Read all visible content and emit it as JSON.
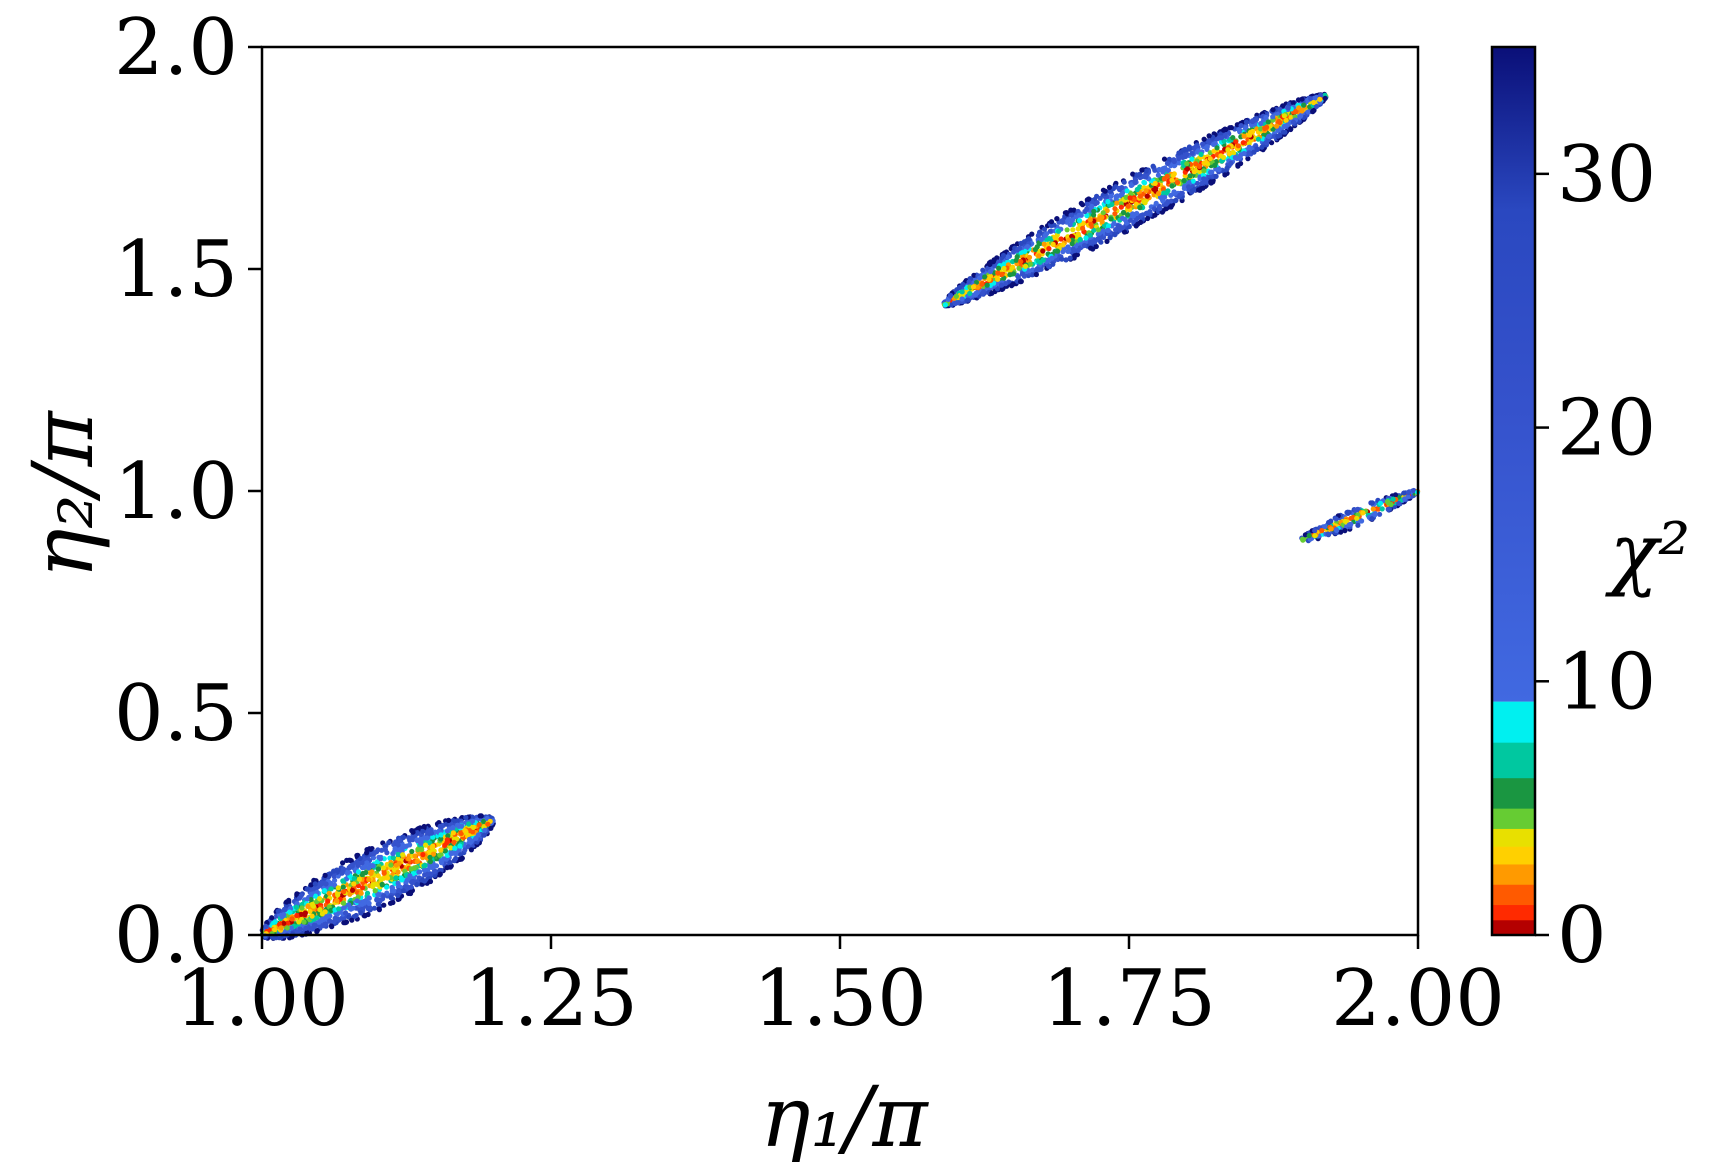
{
  "chart_data": {
    "type": "scatter",
    "xlabel": "η₁/π",
    "ylabel": "η₂/π",
    "xlim": [
      1.0,
      2.0
    ],
    "ylim": [
      0.0,
      2.0
    ],
    "xticks": [
      1.0,
      1.25,
      1.5,
      1.75,
      2.0
    ],
    "xtick_labels": [
      "1.00",
      "1.25",
      "1.50",
      "1.75",
      "2.00"
    ],
    "yticks": [
      0.0,
      0.5,
      1.0,
      1.5,
      2.0
    ],
    "ytick_labels": [
      "0.0",
      "0.5",
      "1.0",
      "1.5",
      "2.0"
    ],
    "grid": false,
    "colorbar": {
      "label": "χ²",
      "range": [
        0,
        35
      ],
      "ticks": [
        0,
        10,
        20,
        30
      ],
      "tick_labels": [
        "0",
        "10",
        "20",
        "30"
      ],
      "colors": {
        "dark_red": "#b40000",
        "red": "#ff2a00",
        "orange": "#ff9a00",
        "yellow": "#e8e000",
        "light_green": "#66cc33",
        "green": "#1a9641",
        "teal": "#00c8a0",
        "cyan": "#00f0f0",
        "light_blue": "#4169e1",
        "blue": "#2a48c0",
        "navy": "#0a0f78"
      }
    },
    "series": [
      {
        "cluster": "lower-left",
        "x_range": [
          1.0,
          1.22
        ],
        "y_range": [
          0.0,
          0.27
        ],
        "centerline": [
          [
            1.0,
            0.0
          ],
          [
            1.1,
            0.12
          ],
          [
            1.2,
            0.26
          ]
        ],
        "chi2_range": [
          0,
          35
        ]
      },
      {
        "cluster": "upper-middle",
        "x_range": [
          1.59,
          1.92
        ],
        "y_range": [
          1.41,
          1.89
        ],
        "centerline": [
          [
            1.59,
            1.42
          ],
          [
            1.75,
            1.67
          ],
          [
            1.92,
            1.89
          ]
        ],
        "chi2_range": [
          0,
          35
        ]
      },
      {
        "cluster": "right",
        "x_range": [
          1.9,
          2.0
        ],
        "y_range": [
          0.89,
          1.0
        ],
        "centerline": [
          [
            1.9,
            0.89
          ],
          [
            1.95,
            0.94
          ],
          [
            2.0,
            1.0
          ]
        ],
        "chi2_range": [
          0,
          35
        ]
      }
    ]
  }
}
